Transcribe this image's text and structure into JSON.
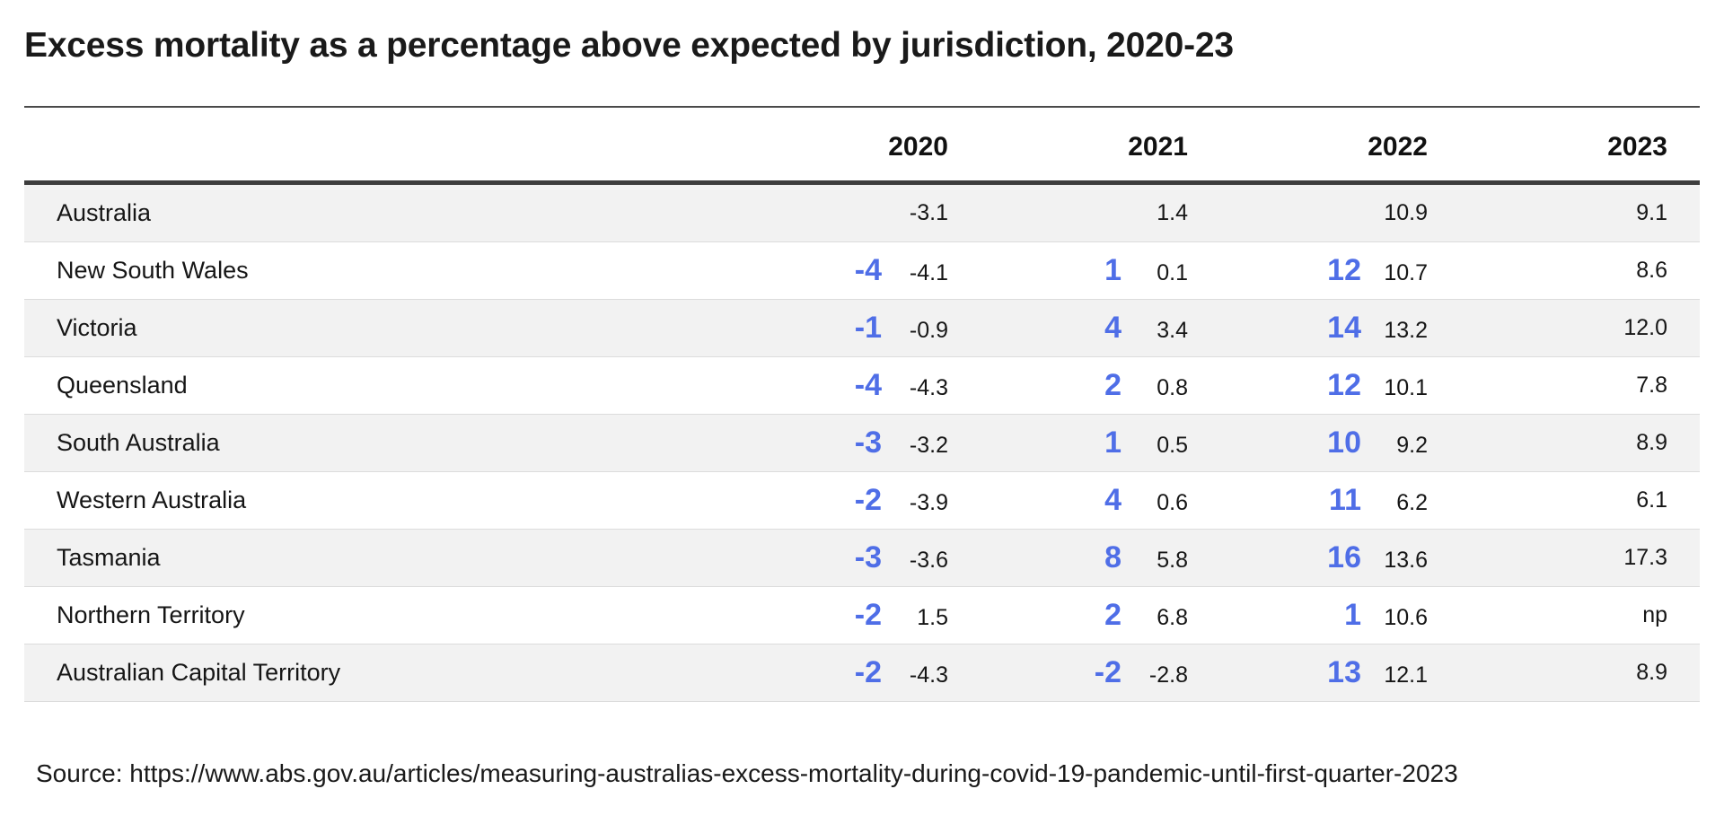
{
  "title": "Excess mortality as a percentage above expected by jurisdiction, 2020-23",
  "source": "Source: https://www.abs.gov.au/articles/measuring-australias-excess-mortality-during-covid-19-pandemic-until-first-quarter-2023",
  "colors": {
    "accent_blue": "#4f6ee7",
    "stripe": "#f2f2f2",
    "header_rule": "#3d3d3d"
  },
  "table": {
    "columns": [
      "2020",
      "2021",
      "2022",
      "2023"
    ],
    "rows": [
      {
        "jurisdiction": "Australia",
        "cells": [
          {
            "big": "",
            "val": "-3.1"
          },
          {
            "big": "",
            "val": "1.4"
          },
          {
            "big": "",
            "val": "10.9"
          },
          {
            "big": "",
            "val": "9.1"
          }
        ]
      },
      {
        "jurisdiction": "New South Wales",
        "cells": [
          {
            "big": "-4",
            "val": "-4.1"
          },
          {
            "big": "1",
            "val": "0.1"
          },
          {
            "big": "12",
            "val": "10.7"
          },
          {
            "big": "",
            "val": "8.6"
          }
        ]
      },
      {
        "jurisdiction": "Victoria",
        "cells": [
          {
            "big": "-1",
            "val": "-0.9"
          },
          {
            "big": "4",
            "val": "3.4"
          },
          {
            "big": "14",
            "val": "13.2"
          },
          {
            "big": "",
            "val": "12.0"
          }
        ]
      },
      {
        "jurisdiction": "Queensland",
        "cells": [
          {
            "big": "-4",
            "val": "-4.3"
          },
          {
            "big": "2",
            "val": "0.8"
          },
          {
            "big": "12",
            "val": "10.1"
          },
          {
            "big": "",
            "val": "7.8"
          }
        ]
      },
      {
        "jurisdiction": "South Australia",
        "cells": [
          {
            "big": "-3",
            "val": "-3.2"
          },
          {
            "big": "1",
            "val": "0.5"
          },
          {
            "big": "10",
            "val": "9.2"
          },
          {
            "big": "",
            "val": "8.9"
          }
        ]
      },
      {
        "jurisdiction": "Western Australia",
        "cells": [
          {
            "big": "-2",
            "val": "-3.9"
          },
          {
            "big": "4",
            "val": "0.6"
          },
          {
            "big": "11",
            "val": "6.2"
          },
          {
            "big": "",
            "val": "6.1"
          }
        ]
      },
      {
        "jurisdiction": "Tasmania",
        "cells": [
          {
            "big": "-3",
            "val": "-3.6"
          },
          {
            "big": "8",
            "val": "5.8"
          },
          {
            "big": "16",
            "val": "13.6"
          },
          {
            "big": "",
            "val": "17.3"
          }
        ]
      },
      {
        "jurisdiction": "Northern Territory",
        "cells": [
          {
            "big": "-2",
            "val": "1.5"
          },
          {
            "big": "2",
            "val": "6.8"
          },
          {
            "big": "1",
            "val": "10.6"
          },
          {
            "big": "",
            "val": "np"
          }
        ]
      },
      {
        "jurisdiction": "Australian Capital Territory",
        "cells": [
          {
            "big": "-2",
            "val": "-4.3"
          },
          {
            "big": "-2",
            "val": "-2.8"
          },
          {
            "big": "13",
            "val": "12.1"
          },
          {
            "big": "",
            "val": "8.9"
          }
        ]
      }
    ]
  },
  "chart_data": {
    "type": "table",
    "title": "Excess mortality as a percentage above expected by jurisdiction, 2020-23",
    "columns": [
      "2020",
      "2021",
      "2022",
      "2023"
    ],
    "rows": [
      {
        "jurisdiction": "Australia",
        "values": [
          -3.1,
          1.4,
          10.9,
          9.1
        ],
        "rounded_highlight": [
          null,
          null,
          null,
          null
        ]
      },
      {
        "jurisdiction": "New South Wales",
        "values": [
          -4.1,
          0.1,
          10.7,
          8.6
        ],
        "rounded_highlight": [
          -4,
          1,
          12,
          null
        ]
      },
      {
        "jurisdiction": "Victoria",
        "values": [
          -0.9,
          3.4,
          13.2,
          12.0
        ],
        "rounded_highlight": [
          -1,
          4,
          14,
          null
        ]
      },
      {
        "jurisdiction": "Queensland",
        "values": [
          -4.3,
          0.8,
          10.1,
          7.8
        ],
        "rounded_highlight": [
          -4,
          2,
          12,
          null
        ]
      },
      {
        "jurisdiction": "South Australia",
        "values": [
          -3.2,
          0.5,
          9.2,
          8.9
        ],
        "rounded_highlight": [
          -3,
          1,
          10,
          null
        ]
      },
      {
        "jurisdiction": "Western Australia",
        "values": [
          -3.9,
          0.6,
          6.2,
          6.1
        ],
        "rounded_highlight": [
          -2,
          4,
          11,
          null
        ]
      },
      {
        "jurisdiction": "Tasmania",
        "values": [
          -3.6,
          5.8,
          13.6,
          17.3
        ],
        "rounded_highlight": [
          -3,
          8,
          16,
          null
        ]
      },
      {
        "jurisdiction": "Northern Territory",
        "values": [
          1.5,
          6.8,
          10.6,
          "np"
        ],
        "rounded_highlight": [
          -2,
          2,
          1,
          null
        ]
      },
      {
        "jurisdiction": "Australian Capital Territory",
        "values": [
          -4.3,
          -2.8,
          12.1,
          8.9
        ],
        "rounded_highlight": [
          -2,
          -2,
          13,
          null
        ]
      }
    ],
    "source": "Source: https://www.abs.gov.au/articles/measuring-australias-excess-mortality-during-covid-19-pandemic-until-first-quarter-2023"
  }
}
